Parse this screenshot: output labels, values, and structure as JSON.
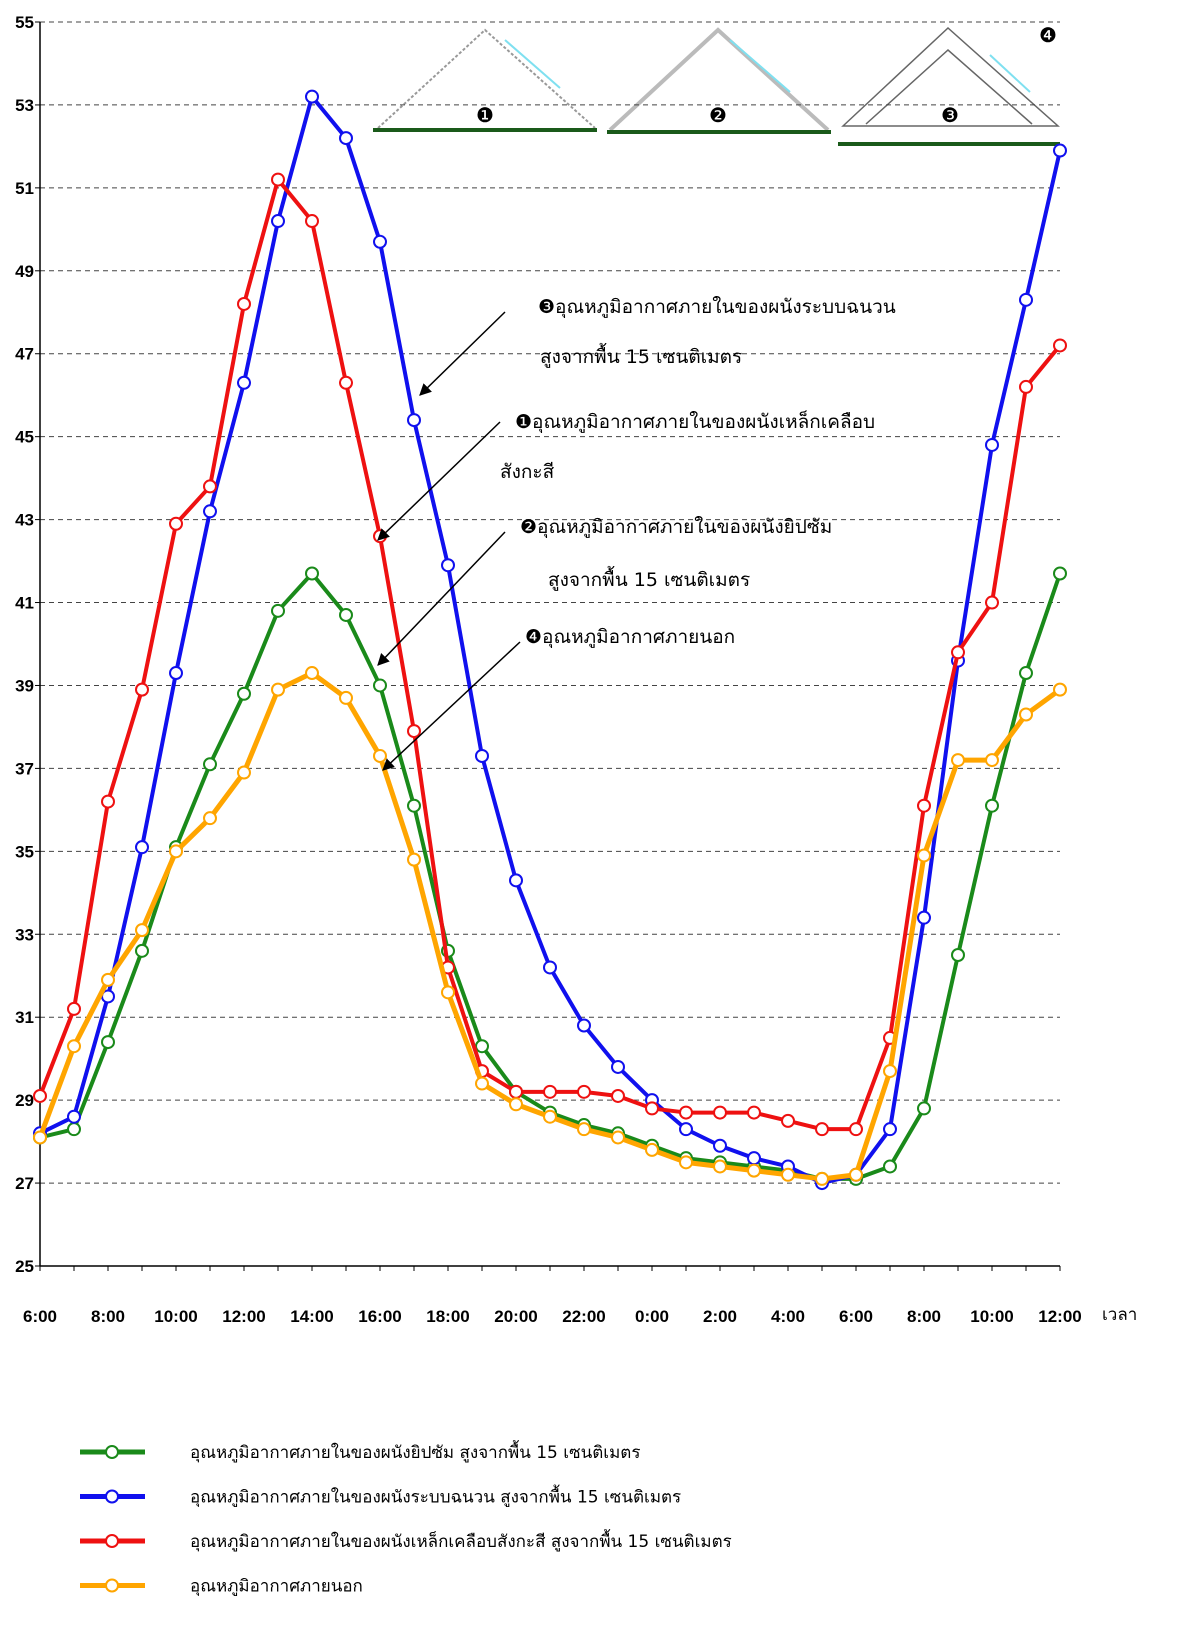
{
  "chart_data": {
    "type": "line",
    "x_label": "เวลา",
    "categories": [
      "6:00",
      null,
      "8:00",
      null,
      "10:00",
      null,
      "12:00",
      null,
      "14:00",
      null,
      "16:00",
      null,
      "18:00",
      null,
      "20:00",
      null,
      "22:00",
      null,
      "0:00",
      null,
      "2:00",
      null,
      "4:00",
      null,
      "6:00",
      null,
      "8:00",
      null,
      "10:00",
      null,
      "12:00"
    ],
    "ylim": [
      25,
      55
    ],
    "yticks": [
      25,
      27,
      29,
      31,
      33,
      35,
      37,
      39,
      41,
      43,
      45,
      47,
      49,
      51,
      53,
      55
    ],
    "grid": true,
    "legend_position": "bottom",
    "series": [
      {
        "name": "อุณหภูมิอากาศภายในของผนังยิปซัม สูงจากพื้น 15 เซนติเมตร",
        "color": "#1a8a1a",
        "values": [
          28.1,
          28.3,
          30.4,
          32.6,
          35.1,
          37.1,
          38.8,
          40.8,
          41.7,
          40.7,
          39.0,
          36.1,
          32.6,
          30.3,
          29.2,
          28.7,
          28.4,
          28.2,
          27.9,
          27.6,
          27.5,
          27.4,
          27.3,
          27.1,
          27.1,
          27.4,
          28.8,
          32.5,
          36.1,
          39.3,
          41.7
        ]
      },
      {
        "name": "อุณหภูมิอากาศภายในของผนังระบบฉนวน สูงจากพื้น 15 เซนติเมตร",
        "color": "#1010ee",
        "values": [
          28.2,
          28.6,
          31.5,
          35.1,
          39.3,
          43.2,
          46.3,
          50.2,
          53.2,
          52.2,
          49.7,
          45.4,
          41.9,
          37.3,
          34.3,
          32.2,
          30.8,
          29.8,
          29.0,
          28.3,
          27.9,
          27.6,
          27.4,
          27.0,
          27.2,
          28.3,
          33.4,
          39.6,
          44.8,
          48.3,
          51.9
        ]
      },
      {
        "name": "อุณหภูมิอากาศภายในของผนังเหล็กเคลือบสังกะสี สูงจากพื้น 15 เซนติเมตร",
        "color": "#ee1111",
        "values": [
          29.1,
          31.2,
          36.2,
          38.9,
          42.9,
          43.8,
          48.2,
          51.2,
          50.2,
          46.3,
          42.6,
          37.9,
          32.2,
          29.7,
          29.2,
          29.2,
          29.2,
          29.1,
          28.8,
          28.7,
          28.7,
          28.7,
          28.5,
          28.3,
          28.3,
          30.5,
          36.1,
          39.8,
          41.0,
          46.2,
          47.2
        ]
      },
      {
        "name": "อุณหภูมิอากาศภายนอก",
        "color": "#ffa500",
        "values": [
          28.1,
          30.3,
          31.9,
          33.1,
          35.0,
          35.8,
          36.9,
          38.9,
          39.3,
          38.7,
          37.3,
          34.8,
          31.6,
          29.4,
          28.9,
          28.6,
          28.3,
          28.1,
          27.8,
          27.5,
          27.4,
          27.3,
          27.2,
          27.1,
          27.2,
          29.7,
          34.9,
          37.2,
          37.2,
          38.3,
          38.9
        ]
      }
    ],
    "annotations": [
      {
        "lines": [
          "❸อุณหภูมิอากาศภายในของผนังระบบฉนวน",
          "สูงจากพื้น 15 เซนติเมตร"
        ]
      },
      {
        "lines": [
          "❶อุณหภูมิอากาศภายในของผนังเหล็กเคลือบ",
          "สังกะสี"
        ]
      },
      {
        "lines": [
          "❷อุณหภูมิอากาศภายในของผนังยิปซัม",
          "สูงจากพื้น 15 เซนติเมตร"
        ]
      },
      {
        "lines": [
          "❹อุณหภูมิอากาศภายนอก"
        ]
      }
    ],
    "diagram_labels": [
      "❶",
      "❷",
      "❸",
      "❹"
    ]
  }
}
